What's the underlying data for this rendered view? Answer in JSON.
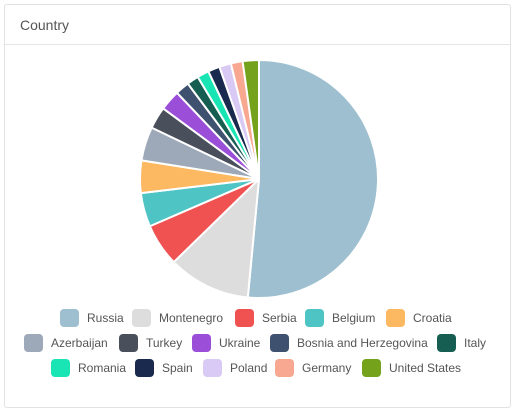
{
  "panel": {
    "title": "Country"
  },
  "chart_data": {
    "type": "pie",
    "title": "Country",
    "legend_position": "bottom",
    "slices": [
      {
        "label": "Russia",
        "value": 51.5,
        "color": "#9dbfd0"
      },
      {
        "label": "Montenegro",
        "value": 11.2,
        "color": "#dddddd"
      },
      {
        "label": "Serbia",
        "value": 5.8,
        "color": "#f05252"
      },
      {
        "label": "Belgium",
        "value": 4.6,
        "color": "#4fc4c4"
      },
      {
        "label": "Croatia",
        "value": 4.4,
        "color": "#fdb862"
      },
      {
        "label": "Azerbaijan",
        "value": 4.6,
        "color": "#9da9b9"
      },
      {
        "label": "Turkey",
        "value": 3.0,
        "color": "#4a4f5c"
      },
      {
        "label": "Ukraine",
        "value": 2.8,
        "color": "#9b4fd8"
      },
      {
        "label": "Bosnia and Herzegovina",
        "value": 1.9,
        "color": "#3e516e"
      },
      {
        "label": "Italy",
        "value": 1.6,
        "color": "#175e52"
      },
      {
        "label": "Romania",
        "value": 1.6,
        "color": "#19e5b4"
      },
      {
        "label": "Spain",
        "value": 1.6,
        "color": "#1a2a4e"
      },
      {
        "label": "Poland",
        "value": 1.6,
        "color": "#d9c9f5"
      },
      {
        "label": "Germany",
        "value": 1.6,
        "color": "#f8a890"
      },
      {
        "label": "United States",
        "value": 2.2,
        "color": "#74a21a"
      }
    ]
  }
}
